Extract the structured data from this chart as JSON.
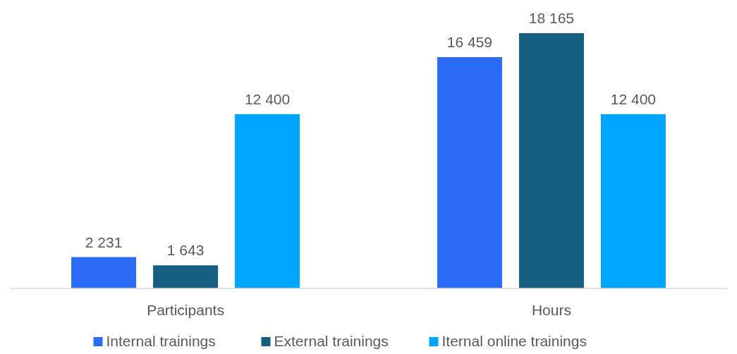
{
  "chart_data": {
    "type": "bar",
    "categories": [
      "Participants",
      "Hours"
    ],
    "series": [
      {
        "name": "Internal trainings",
        "color": "#2b6cf6",
        "values": [
          2231,
          16459
        ],
        "value_labels": [
          "2 231",
          "16 459"
        ]
      },
      {
        "name": "External trainings",
        "color": "#165f80",
        "values": [
          1643,
          18165
        ],
        "value_labels": [
          "1 643",
          "18 165"
        ]
      },
      {
        "name": "Iternal online trainings",
        "color": "#00a5ff",
        "values": [
          12400,
          12400
        ],
        "value_labels": [
          "12 400",
          "12 400"
        ]
      }
    ],
    "legend": "bottom"
  }
}
